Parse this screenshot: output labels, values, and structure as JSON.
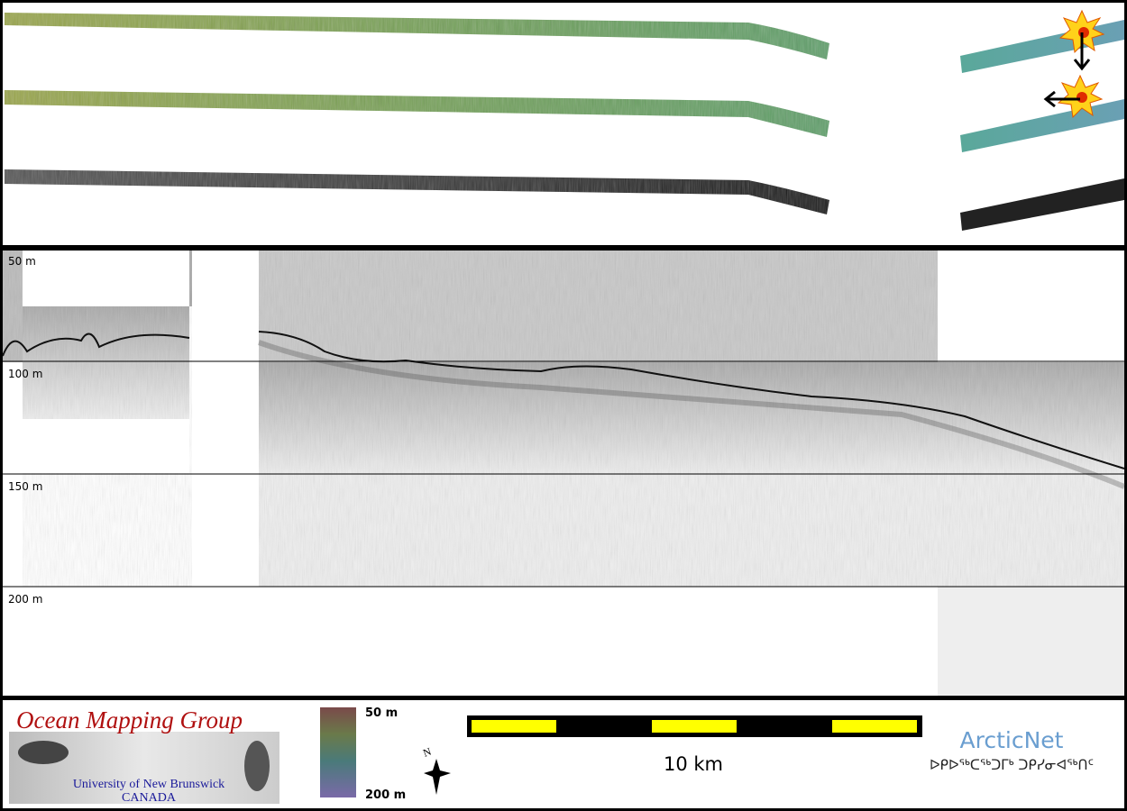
{
  "profile": {
    "depth_labels": [
      "50 m",
      "100 m",
      "150 m",
      "200 m"
    ]
  },
  "logo": {
    "title": "Ocean Mapping Group",
    "university": "University of New Brunswick",
    "country": "CANADA"
  },
  "colorbar": {
    "top": "50 m",
    "bottom": "200 m"
  },
  "compass": "N",
  "scale": "10 km",
  "arcticnet": {
    "name": "ArcticNet",
    "syllabics": "ᐅᑭᐅᖅᑕᖅᑐᒥᒃ ᑐᑭᓯᓂᐊᖅᑎᑦ"
  }
}
